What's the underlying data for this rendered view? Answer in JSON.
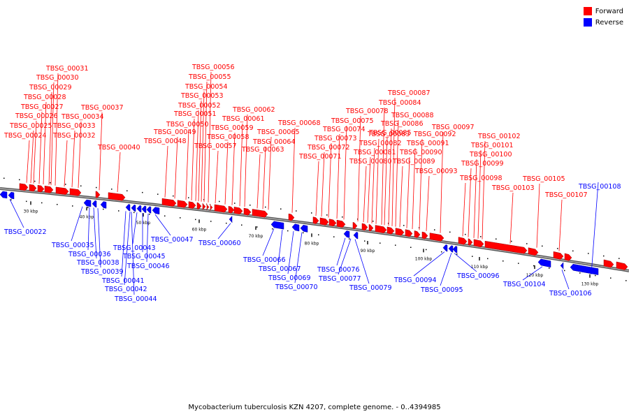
{
  "legend": {
    "forward_label": "Forward",
    "reverse_label": "Reverse",
    "forward_color": "#ff0000",
    "reverse_color": "#0000ff"
  },
  "caption": "Mycobacterium tuberculosis KZN 4207, complete genome. - 0..4394985",
  "scale_labels": [
    "30 kbp",
    "40 kbp",
    "50 kbp",
    "60 kbp",
    "70 kbp",
    "80 kbp",
    "90 kbp",
    "100 kbp",
    "110 kbp",
    "120 kbp",
    "130 kbp"
  ],
  "forward_genes": [
    "TBSG_00024",
    "TBSG_00025",
    "TBSG_00026",
    "TBSG_00027",
    "TBSG_00028",
    "TBSG_00029",
    "TBSG_00030",
    "TBSG_00031",
    "TBSG_00032",
    "TBSG_00033",
    "TBSG_00034",
    "TBSG_00037",
    "TBSG_00040",
    "TBSG_00048",
    "TBSG_00049",
    "TBSG_00050",
    "TBSG_00051",
    "TBSG_00052",
    "TBSG_00053",
    "TBSG_00054",
    "TBSG_00055",
    "TBSG_00056",
    "TBSG_00057",
    "TBSG_00058",
    "TBSG_00059",
    "TBSG_00061",
    "TBSG_00062",
    "TBSG_00063",
    "TBSG_00064",
    "TBSG_00065",
    "TBSG_00068",
    "TBSG_00071",
    "TBSG_00072",
    "TBSG_00073",
    "TBSG_00074",
    "TBSG_00075",
    "TBSG_00078",
    "TBSG_00080",
    "TBSG_00081",
    "TBSG_00082",
    "TBSG_00083",
    "TBSG_00084",
    "TBSG_00085",
    "TBSG_00086",
    "TBSG_00087",
    "TBSG_00088",
    "TBSG_00089",
    "TBSG_00090",
    "TBSG_00091",
    "TBSG_00092",
    "TBSG_00093",
    "TBSG_00097",
    "TBSG_00098",
    "TBSG_00099",
    "TBSG_00100",
    "TBSG_00101",
    "TBSG_00102",
    "TBSG_00103",
    "TBSG_00105",
    "TBSG_00107"
  ],
  "reverse_genes": [
    "TBSG_00022",
    "TBSG_00035",
    "TBSG_00036",
    "TBSG_00038",
    "TBSG_00039",
    "TBSG_00041",
    "TBSG_00042",
    "TBSG_00043",
    "TBSG_00044",
    "TBSG_00045",
    "TBSG_00046",
    "TBSG_00047",
    "TBSG_00060",
    "TBSG_00066",
    "TBSG_00067",
    "TBSG_00069",
    "TBSG_00070",
    "TBSG_00076",
    "TBSG_00077",
    "TBSG_00079",
    "TBSG_00094",
    "TBSG_00095",
    "TBSG_00096",
    "TBSG_00104",
    "TBSG_00106",
    "TBSG_00108"
  ]
}
